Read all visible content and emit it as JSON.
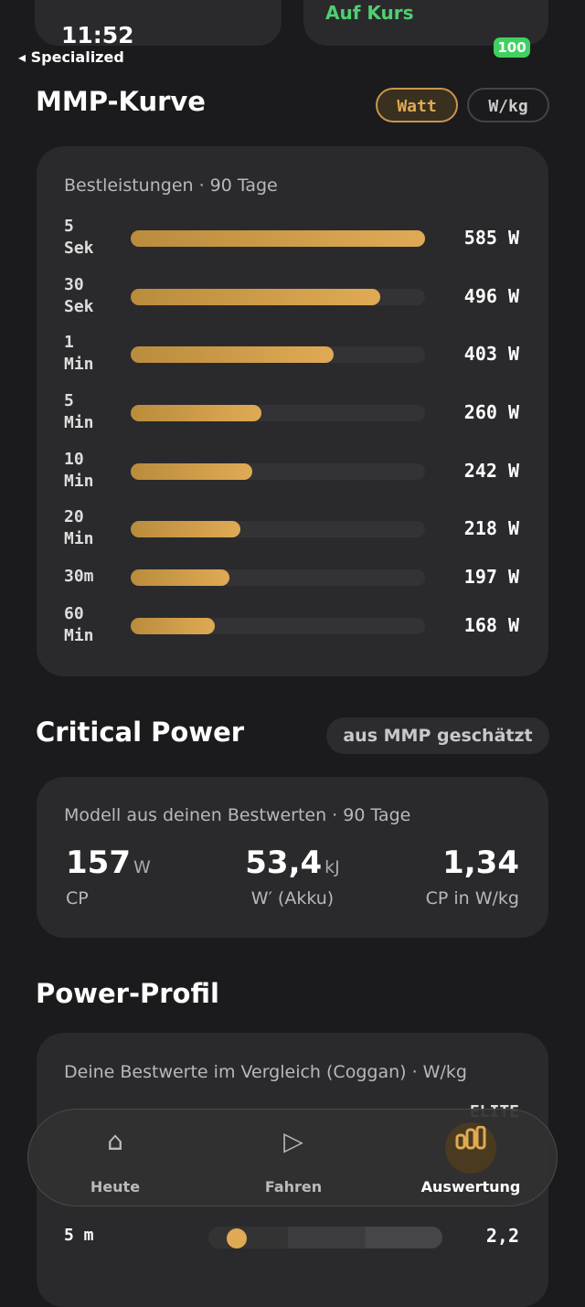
{
  "status": {
    "time": "11:52",
    "back": "Specialized",
    "battery": "100",
    "top_tag": "Auf Kurs"
  },
  "mmp": {
    "title": "MMP-Kurve",
    "toggles": [
      "Watt",
      "W/kg"
    ],
    "subtitle": "Bestleistungen · 90 Tage",
    "rows": [
      {
        "duration": [
          "5",
          "Sek"
        ],
        "value": 585,
        "label": "585 W"
      },
      {
        "duration": [
          "30",
          "Sek"
        ],
        "value": 496,
        "label": "496 W"
      },
      {
        "duration": [
          "1",
          "Min"
        ],
        "value": 403,
        "label": "403 W"
      },
      {
        "duration": [
          "5",
          "Min"
        ],
        "value": 260,
        "label": "260 W"
      },
      {
        "duration": [
          "10",
          "Min"
        ],
        "value": 242,
        "label": "242 W"
      },
      {
        "duration": [
          "20",
          "Min"
        ],
        "value": 218,
        "label": "218 W"
      },
      {
        "duration": [
          "30m"
        ],
        "value": 197,
        "label": "197 W"
      },
      {
        "duration": [
          "60",
          "Min"
        ],
        "value": 168,
        "label": "168 W"
      }
    ]
  },
  "cp": {
    "title": "Critical Power",
    "badge": "aus MMP geschätzt",
    "subtitle": "Modell aus deinen Bestwerten · 90 Tage",
    "stats": [
      {
        "value": "157",
        "unit": "W",
        "label": "CP"
      },
      {
        "value": "53,4",
        "unit": "kJ",
        "label": "W′ (Akku)"
      },
      {
        "value": "1,34",
        "unit": "",
        "label": "CP in W/kg"
      }
    ]
  },
  "profile": {
    "title": "Power-Profil",
    "subtitle": "Deine Bestwerte im Vergleich (Coggan) · W/kg",
    "level": "ELITE",
    "rows": [
      {
        "label": "5 m",
        "value": "2,2"
      }
    ]
  },
  "nav": {
    "items": [
      "Heute",
      "Fahren",
      "Auswertung"
    ]
  }
}
